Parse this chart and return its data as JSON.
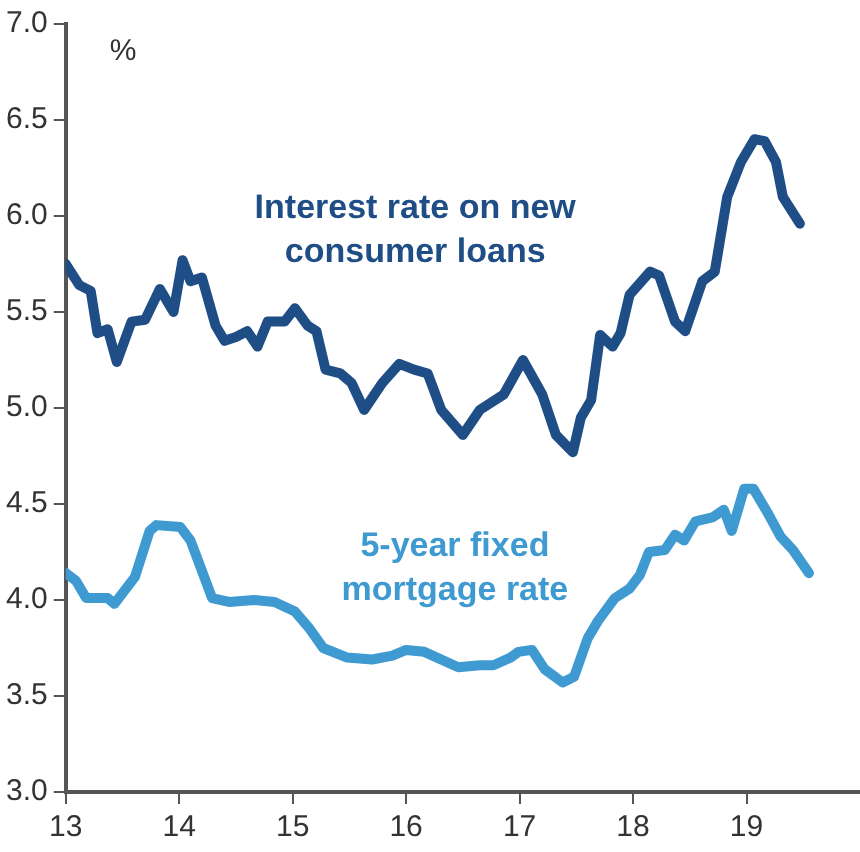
{
  "chart_data": {
    "type": "line",
    "ylabel": "%",
    "xlim": [
      13,
      20
    ],
    "xticks": [
      13,
      14,
      15,
      16,
      17,
      18,
      19
    ],
    "ylim": [
      3,
      7
    ],
    "yticks": [
      {
        "value": 3,
        "label": "3.0"
      },
      {
        "value": 3.5,
        "label": "3.5"
      },
      {
        "value": 4,
        "label": "4.0"
      },
      {
        "value": 4.5,
        "label": "4.5"
      },
      {
        "value": 5,
        "label": "5.0"
      },
      {
        "value": 5.5,
        "label": "5.5"
      },
      {
        "value": 6,
        "label": "6.0"
      },
      {
        "value": 6.5,
        "label": "6.5"
      },
      {
        "value": 7,
        "label": "7.0"
      }
    ],
    "grid": false,
    "legend": false,
    "marker": "none",
    "line_style": "solid",
    "series": [
      {
        "name": "Interest rate on new consumer loans",
        "color": "#1f4e86",
        "x": [
          13.0,
          13.12,
          13.22,
          13.28,
          13.37,
          13.45,
          13.58,
          13.7,
          13.83,
          13.95,
          14.03,
          14.1,
          14.2,
          14.32,
          14.4,
          14.5,
          14.6,
          14.69,
          14.78,
          14.93,
          15.02,
          15.13,
          15.21,
          15.29,
          15.42,
          15.52,
          15.63,
          15.79,
          15.94,
          16.07,
          16.19,
          16.31,
          16.5,
          16.65,
          16.86,
          17.03,
          17.2,
          17.32,
          17.47,
          17.54,
          17.63,
          17.71,
          17.82,
          17.89,
          17.97,
          18.15,
          18.23,
          18.37,
          18.46,
          18.61,
          18.72,
          18.83,
          18.95,
          19.07,
          19.16,
          19.26,
          19.32,
          19.47
        ],
        "values": [
          5.75,
          5.64,
          5.61,
          5.39,
          5.41,
          5.24,
          5.45,
          5.46,
          5.62,
          5.5,
          5.77,
          5.66,
          5.68,
          5.43,
          5.35,
          5.37,
          5.4,
          5.32,
          5.45,
          5.45,
          5.52,
          5.43,
          5.4,
          5.2,
          5.18,
          5.13,
          4.99,
          5.13,
          5.23,
          5.2,
          5.18,
          4.99,
          4.86,
          4.99,
          5.07,
          5.25,
          5.07,
          4.86,
          4.77,
          4.95,
          5.04,
          5.38,
          5.32,
          5.39,
          5.59,
          5.71,
          5.69,
          5.45,
          5.4,
          5.66,
          5.71,
          6.1,
          6.28,
          6.4,
          6.39,
          6.28,
          6.1,
          5.96
        ]
      },
      {
        "name": "5-year fixed mortgage rate",
        "color": "#3e9ad0",
        "x": [
          13.0,
          13.09,
          13.18,
          13.37,
          13.43,
          13.61,
          13.74,
          13.8,
          14.01,
          14.1,
          14.29,
          14.44,
          14.66,
          14.84,
          15.02,
          15.15,
          15.27,
          15.48,
          15.7,
          15.88,
          16.0,
          16.16,
          16.46,
          16.65,
          16.77,
          16.92,
          16.99,
          17.11,
          17.22,
          17.38,
          17.48,
          17.6,
          17.69,
          17.84,
          17.97,
          18.06,
          18.14,
          18.28,
          18.37,
          18.45,
          18.55,
          18.7,
          18.8,
          18.87,
          18.98,
          19.06,
          19.19,
          19.3,
          19.41,
          19.55
        ],
        "values": [
          4.14,
          4.1,
          4.01,
          4.01,
          3.98,
          4.12,
          4.36,
          4.39,
          4.38,
          4.31,
          4.01,
          3.99,
          4.0,
          3.99,
          3.94,
          3.85,
          3.75,
          3.7,
          3.69,
          3.71,
          3.74,
          3.73,
          3.65,
          3.66,
          3.66,
          3.7,
          3.73,
          3.74,
          3.64,
          3.57,
          3.6,
          3.8,
          3.89,
          4.01,
          4.06,
          4.13,
          4.25,
          4.26,
          4.34,
          4.31,
          4.41,
          4.43,
          4.47,
          4.36,
          4.58,
          4.58,
          4.45,
          4.33,
          4.26,
          4.14
        ]
      }
    ]
  }
}
